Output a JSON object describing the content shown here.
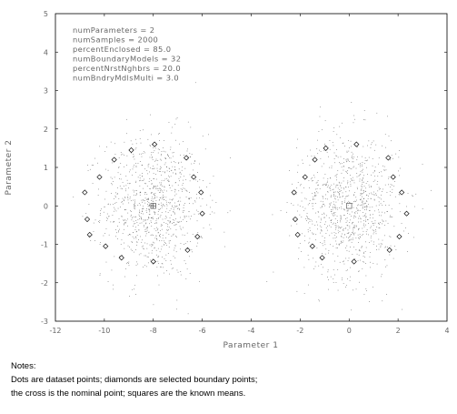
{
  "chart_data": {
    "type": "scatter",
    "title": "",
    "xlabel": "Parameter 1",
    "ylabel": "Parameter 2",
    "xlim": [
      -12,
      4
    ],
    "ylim": [
      -3,
      5
    ],
    "xticks": [
      "-12",
      "-10",
      "-8",
      "-6",
      "-4",
      "-2",
      "0",
      "2",
      "4"
    ],
    "yticks": [
      "-3",
      "-2",
      "-1",
      "0",
      "1",
      "2",
      "3",
      "4",
      "5"
    ],
    "grid": false,
    "annotation_lines": [
      "numParameters = 2",
      "numSamples = 2000",
      "percentEnclosed = 85.0",
      "numBoundaryModels = 32",
      "percentNrstNghbrs =  20.0",
      "numBndryMdlsMulti = 3.0"
    ],
    "dataset_clusters": [
      {
        "center": [
          -8,
          0
        ],
        "spread": 1.1,
        "count": 1000
      },
      {
        "center": [
          0,
          0
        ],
        "spread": 1.1,
        "count": 1000
      }
    ],
    "boundary_points": [
      [
        -8.9,
        1.45
      ],
      [
        -9.6,
        1.2
      ],
      [
        -10.2,
        0.75
      ],
      [
        -10.8,
        0.35
      ],
      [
        -10.7,
        -0.35
      ],
      [
        -10.6,
        -0.75
      ],
      [
        -9.95,
        -1.05
      ],
      [
        -9.3,
        -1.35
      ],
      [
        -8.0,
        -1.45
      ],
      [
        -6.6,
        -1.15
      ],
      [
        -6.2,
        -0.8
      ],
      [
        -6.0,
        -0.2
      ],
      [
        -6.05,
        0.35
      ],
      [
        -6.35,
        0.75
      ],
      [
        -6.65,
        1.25
      ],
      [
        -7.95,
        1.6
      ],
      [
        -0.95,
        1.5
      ],
      [
        -1.4,
        1.2
      ],
      [
        -1.8,
        0.75
      ],
      [
        -2.25,
        0.35
      ],
      [
        -2.2,
        -0.35
      ],
      [
        -2.1,
        -0.75
      ],
      [
        -1.5,
        -1.05
      ],
      [
        -1.1,
        -1.35
      ],
      [
        0.2,
        -1.45
      ],
      [
        1.65,
        -1.15
      ],
      [
        2.05,
        -0.8
      ],
      [
        2.35,
        -0.2
      ],
      [
        2.15,
        0.35
      ],
      [
        1.8,
        0.75
      ],
      [
        1.6,
        1.25
      ],
      [
        0.3,
        1.6
      ]
    ],
    "nominal_point": [
      -8,
      0
    ],
    "known_means": [
      [
        -8,
        0
      ],
      [
        0,
        0
      ]
    ]
  },
  "notes": {
    "heading": "Notes:",
    "line1": "Dots are dataset points; diamonds are selected boundary points;",
    "line2": "the cross is the nominal point; squares are the known means."
  }
}
